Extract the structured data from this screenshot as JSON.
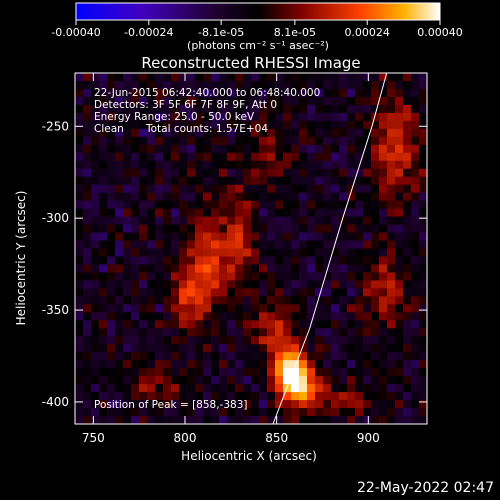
{
  "chart_data": {
    "type": "heatmap",
    "title": "Reconstructed RHESSI Image",
    "xlabel": "Heliocentric X (arcsec)",
    "ylabel": "Heliocentric Y (arcsec)",
    "xlim": [
      740,
      932
    ],
    "ylim": [
      -412,
      -221
    ],
    "x_ticks": [
      "750",
      "800",
      "850",
      "900"
    ],
    "x_tick_values": [
      750,
      800,
      850,
      900
    ],
    "y_ticks": [
      "-250",
      "-300",
      "-350",
      "-400"
    ],
    "y_tick_values": [
      -250,
      -300,
      -350,
      -400
    ],
    "colorbar": {
      "min": -0.0004,
      "max": 0.0004,
      "tick_labels": [
        "-0.00040",
        "-0.00024",
        "-8.1e-05",
        "8.1e-05",
        "0.00024",
        "0.00040"
      ],
      "tick_values": [
        -0.0004,
        -0.00024,
        -8.1e-05,
        8.1e-05,
        0.00024,
        0.0004
      ],
      "units_label": "(photons cm⁻² s⁻¹ asec⁻²)"
    },
    "annotations": {
      "time_range": "22-Jun-2015 06:42:40.000 to 06:48:40.000",
      "detectors": "Detectors: 3F 5F 6F 7F 8F 9F, Att 0",
      "energy_range": "Energy Range: 25.0 - 50.0 keV",
      "algorithm": "Clean",
      "total_counts": "Total counts: 1.57E+04",
      "peak_position": "Position of Peak = [858,-383]"
    },
    "peak": {
      "x": 858,
      "y": -383
    },
    "limb_line": [
      [
        848,
        -412
      ],
      [
        868,
        -360
      ],
      [
        886,
        -300
      ],
      [
        902,
        -250
      ],
      [
        910,
        -221
      ]
    ],
    "emission_sources": [
      {
        "x": 858,
        "y": -383,
        "sigma_x": 7,
        "sigma_y": 9,
        "amp": 1.0
      },
      {
        "x": 865,
        "y": -395,
        "sigma_x": 9,
        "sigma_y": 7,
        "amp": 0.6
      },
      {
        "x": 848,
        "y": -360,
        "sigma_x": 8,
        "sigma_y": 10,
        "amp": 0.45
      },
      {
        "x": 812,
        "y": -325,
        "sigma_x": 8,
        "sigma_y": 22,
        "amp": 0.55
      },
      {
        "x": 830,
        "y": -310,
        "sigma_x": 6,
        "sigma_y": 18,
        "amp": 0.45
      },
      {
        "x": 800,
        "y": -345,
        "sigma_x": 6,
        "sigma_y": 12,
        "amp": 0.4
      },
      {
        "x": 915,
        "y": -260,
        "sigma_x": 10,
        "sigma_y": 20,
        "amp": 0.5
      },
      {
        "x": 910,
        "y": -340,
        "sigma_x": 9,
        "sigma_y": 15,
        "amp": 0.4
      },
      {
        "x": 785,
        "y": -390,
        "sigma_x": 10,
        "sigma_y": 8,
        "amp": 0.3
      },
      {
        "x": 845,
        "y": -265,
        "sigma_x": 10,
        "sigma_y": 12,
        "amp": 0.3
      },
      {
        "x": 890,
        "y": -400,
        "sigma_x": 8,
        "sigma_y": 6,
        "amp": 0.35
      }
    ]
  },
  "footer": {
    "timestamp": "22-May-2022 02:47"
  }
}
